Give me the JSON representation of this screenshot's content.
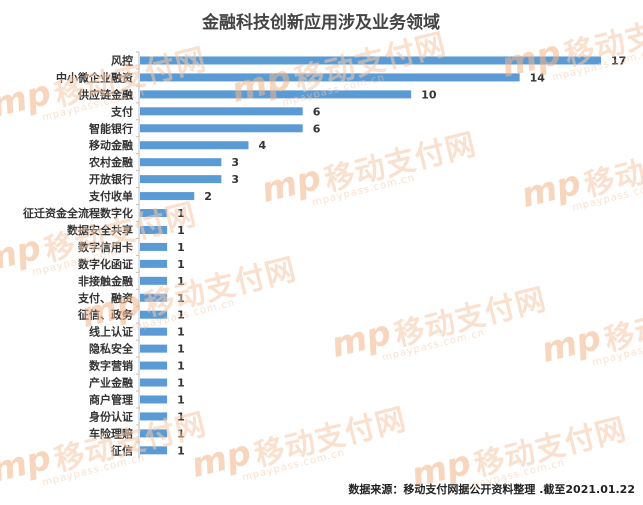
{
  "chart_data": {
    "type": "bar",
    "orientation": "horizontal",
    "title": "金融科技创新应用涉及业务领域",
    "categories": [
      "风控",
      "中小微企业融资",
      "供应链金融",
      "支付",
      "智能银行",
      "移动金融",
      "农村金融",
      "开放银行",
      "支付收单",
      "征迁资金全流程数字化",
      "数据安全共享",
      "数字信用卡",
      "数字化函证",
      "非接触金融",
      "支付、融资",
      "征信、政务",
      "线上认证",
      "隐私安全",
      "数字营销",
      "产业金融",
      "商户管理",
      "身份认证",
      "车险理赔",
      "征信"
    ],
    "values": [
      17,
      14,
      10,
      6,
      6,
      4,
      3,
      3,
      2,
      1,
      1,
      1,
      1,
      1,
      1,
      1,
      1,
      1,
      1,
      1,
      1,
      1,
      1,
      1
    ],
    "xlim": [
      0,
      17
    ],
    "grid": false,
    "legend": "none",
    "bar_color": "#5b9bd5"
  },
  "watermark": {
    "brand": "移动支付网",
    "logo": "mp",
    "url": "mpaypass.com.cn"
  },
  "footer": {
    "source": "数据来源：移动支付网据公开资料整理 .截至2021.01.22"
  }
}
